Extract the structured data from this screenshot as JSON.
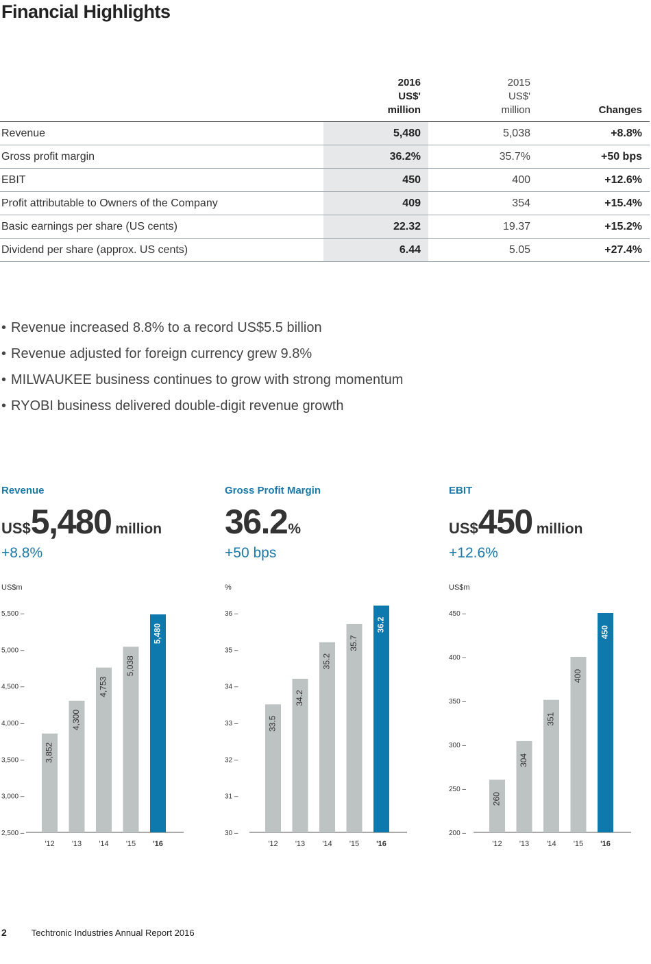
{
  "page_title": "Financial Highlights",
  "table": {
    "headers": {
      "y2016": [
        "2016",
        "US$'",
        "million"
      ],
      "y2015": [
        "2015",
        "US$'",
        "million"
      ],
      "changes": "Changes"
    },
    "rows": [
      {
        "label": "Revenue",
        "y2016": "5,480",
        "y2015": "5,038",
        "change": "+8.8%"
      },
      {
        "label": "Gross profit margin",
        "y2016": "36.2%",
        "y2015": "35.7%",
        "change": "+50 bps"
      },
      {
        "label": "EBIT",
        "y2016": "450",
        "y2015": "400",
        "change": "+12.6%"
      },
      {
        "label": "Profit attributable to Owners of the Company",
        "y2016": "409",
        "y2015": "354",
        "change": "+15.4%"
      },
      {
        "label": "Basic earnings per share (US cents)",
        "y2016": "22.32",
        "y2015": "19.37",
        "change": "+15.2%"
      },
      {
        "label": "Dividend per share (approx. US cents)",
        "y2016": "6.44",
        "y2015": "5.05",
        "change": "+27.4%"
      }
    ]
  },
  "bullets": [
    "Revenue increased 8.8% to a record US$5.5 billion",
    "Revenue adjusted for foreign currency grew 9.8%",
    "MILWAUKEE business continues to grow with strong momentum",
    "RYOBI business delivered double-digit revenue growth"
  ],
  "kpis": [
    {
      "label": "Revenue",
      "prefix": "US$",
      "value": "5,480",
      "suffix": "million",
      "change": "+8.8%"
    },
    {
      "label": "Gross Profit Margin",
      "prefix": "",
      "value": "36.2",
      "suffix": "%",
      "change": "+50 bps"
    },
    {
      "label": "EBIT",
      "prefix": "US$",
      "value": "450",
      "suffix": "million",
      "change": "+12.6%"
    }
  ],
  "colors": {
    "highlight": "#0e79ac",
    "bar": "#bdc2c3",
    "accent_text": "#1b79a8"
  },
  "chart_data": [
    {
      "type": "bar",
      "ylabel": "US$m",
      "ylim": [
        2500,
        5500
      ],
      "yticks": [
        2500,
        3000,
        3500,
        4000,
        4500,
        5000,
        5500
      ],
      "ytick_labels": [
        "2,500",
        "3,000",
        "3,500",
        "4,000",
        "4,500",
        "5,000",
        "5,500"
      ],
      "categories": [
        "'12",
        "'13",
        "'14",
        "'15",
        "'16"
      ],
      "values": [
        3852,
        4300,
        4753,
        5038,
        5480
      ],
      "value_labels": [
        "3,852",
        "4,300",
        "4,753",
        "5,038",
        "5,480"
      ],
      "highlight_index": 4
    },
    {
      "type": "bar",
      "ylabel": "%",
      "ylim": [
        30,
        36
      ],
      "yticks": [
        30,
        31,
        32,
        33,
        34,
        35,
        36
      ],
      "ytick_labels": [
        "30",
        "31",
        "32",
        "33",
        "34",
        "35",
        "36"
      ],
      "categories": [
        "'12",
        "'13",
        "'14",
        "'15",
        "'16"
      ],
      "values": [
        33.5,
        34.2,
        35.2,
        35.7,
        36.2
      ],
      "value_labels": [
        "33.5",
        "34.2",
        "35.2",
        "35.7",
        "36.2"
      ],
      "highlight_index": 4
    },
    {
      "type": "bar",
      "ylabel": "US$m",
      "ylim": [
        200,
        450
      ],
      "yticks": [
        200,
        250,
        300,
        350,
        400,
        450
      ],
      "ytick_labels": [
        "200",
        "250",
        "300",
        "350",
        "400",
        "450"
      ],
      "categories": [
        "'12",
        "'13",
        "'14",
        "'15",
        "'16"
      ],
      "values": [
        260,
        304,
        351,
        400,
        450
      ],
      "value_labels": [
        "260",
        "304",
        "351",
        "400",
        "450"
      ],
      "highlight_index": 4
    }
  ],
  "footer": {
    "page_number": "2",
    "text": "Techtronic Industries Annual Report 2016"
  }
}
